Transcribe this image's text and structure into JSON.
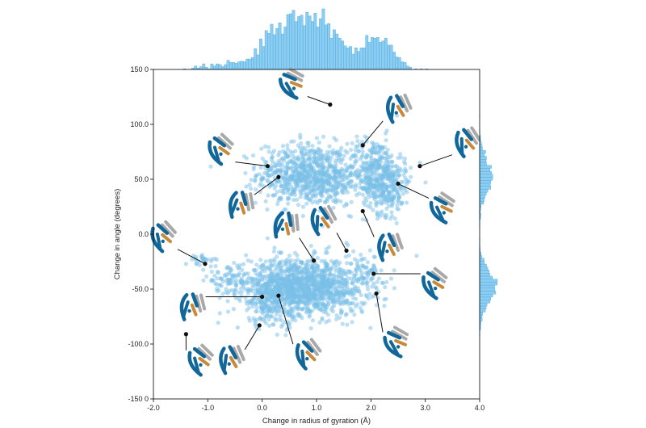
{
  "colors": {
    "points": "#79bfe8",
    "histogram_fill": "#8ccdf2",
    "histogram_edge": "#4aa6dc",
    "protein_blue": "#12679a",
    "protein_gray": "#a9a9a9",
    "protein_orange": "#c8893a",
    "leader": "#111111",
    "axis": "#000000"
  },
  "chart_data": {
    "type": "scatter",
    "title": "",
    "xlabel": "Change in radius of gyration (Å)",
    "ylabel": "Change in angle (degrees)",
    "xlim": [
      -2.0,
      4.0
    ],
    "ylim": [
      -150.0,
      150.0
    ],
    "xticks": [
      -2.0,
      -1.0,
      0.0,
      1.0,
      2.0,
      3.0,
      4.0
    ],
    "xtick_labels": [
      "-2.0",
      "-1.0",
      "0.0",
      "1.0",
      "2.0",
      "3.0",
      "4.0"
    ],
    "yticks": [
      -150,
      -100,
      -50,
      0,
      50,
      100,
      150
    ],
    "ytick_labels": [
      "-150 0",
      "-100.0",
      "-50.0",
      "0.0",
      "50.0",
      "100.0",
      "150 0"
    ],
    "grid": false,
    "marginal_histograms": [
      "top",
      "right"
    ],
    "clusters": [
      {
        "cx": 0.75,
        "cy": 55,
        "sx": 0.42,
        "sy": 14,
        "count": 620
      },
      {
        "cx": 1.25,
        "cy": 46,
        "sx": 0.28,
        "sy": 10,
        "count": 160
      },
      {
        "cx": 2.05,
        "cy": 60,
        "sx": 0.26,
        "sy": 14,
        "count": 300
      },
      {
        "cx": 2.3,
        "cy": 42,
        "sx": 0.22,
        "sy": 12,
        "count": 230
      },
      {
        "cx": 0.85,
        "cy": -48,
        "sx": 0.55,
        "sy": 13,
        "count": 1150
      },
      {
        "cx": 0.25,
        "cy": -55,
        "sx": 0.35,
        "sy": 15,
        "count": 320
      },
      {
        "cx": -0.6,
        "cy": -42,
        "sx": 0.22,
        "sy": 6,
        "count": 90
      },
      {
        "cx": -1.05,
        "cy": -24,
        "sx": 0.14,
        "sy": 3,
        "count": 30
      },
      {
        "cx": 1.9,
        "cy": -32,
        "sx": 0.12,
        "sy": 7,
        "count": 45
      }
    ],
    "outliers": [
      {
        "x": -0.45,
        "y": -85
      },
      {
        "x": -0.1,
        "y": -78
      },
      {
        "x": 0.55,
        "y": -75
      },
      {
        "x": 1.3,
        "y": -62
      },
      {
        "x": 2.05,
        "y": -45
      },
      {
        "x": 1.55,
        "y": -8
      },
      {
        "x": 2.9,
        "y": 65
      },
      {
        "x": 0.7,
        "y": 88
      },
      {
        "x": 0.3,
        "y": 72
      },
      {
        "x": 1.85,
        "y": 72
      },
      {
        "x": 2.15,
        "y": 80
      },
      {
        "x": 2.7,
        "y": 48
      }
    ],
    "annotated_states": [
      {
        "x": 1.25,
        "y": 118
      },
      {
        "x": 1.85,
        "y": 81
      },
      {
        "x": 0.1,
        "y": 62
      },
      {
        "x": 0.3,
        "y": 52
      },
      {
        "x": 2.9,
        "y": 62
      },
      {
        "x": 2.5,
        "y": 46
      },
      {
        "x": 1.85,
        "y": 21
      },
      {
        "x": -1.05,
        "y": -27
      },
      {
        "x": 0.95,
        "y": -24
      },
      {
        "x": 1.55,
        "y": -15
      },
      {
        "x": 2.05,
        "y": -36
      },
      {
        "x": 0.0,
        "y": -57
      },
      {
        "x": 0.3,
        "y": -56
      },
      {
        "x": 2.1,
        "y": -54
      },
      {
        "x": -0.05,
        "y": -83
      },
      {
        "x": -1.4,
        "y": -91
      }
    ]
  }
}
